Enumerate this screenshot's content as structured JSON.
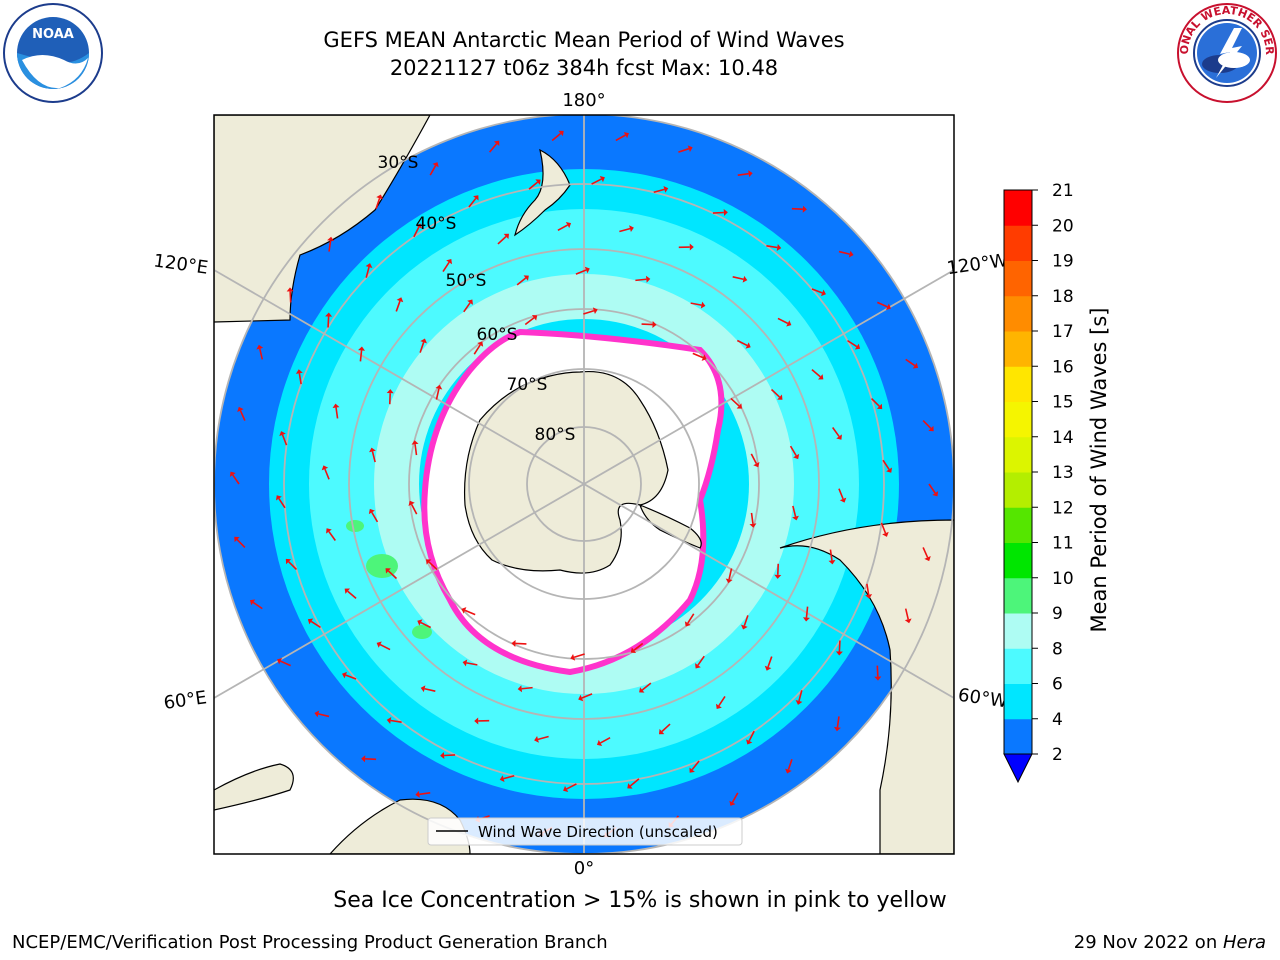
{
  "header": {
    "title_line1": "GEFS MEAN Antarctic Mean Period of Wind Waves",
    "title_line2": "20221127 t06z 384h fcst   Max: 10.48"
  },
  "logos": {
    "left": {
      "icon": "noaa-logo",
      "text": "NOAA"
    },
    "right": {
      "icon": "national-weather-service-logo",
      "text": "NATIONAL WEATHER SERVICE"
    }
  },
  "map": {
    "projection": "south-polar-stereographic",
    "longitude_labels": {
      "top": "180°",
      "bottom": "0°",
      "upper_left": "120°E",
      "upper_right": "120°W",
      "lower_left": "60°E",
      "lower_right": "60°W"
    },
    "latitude_labels": [
      "30°S",
      "40°S",
      "50°S",
      "60°S",
      "70°S",
      "80°S"
    ],
    "legend_label": "Wind Wave Direction (unscaled)",
    "colors": {
      "land": "#eeecd9",
      "band_2_4": "#0a78ff",
      "band_4_6": "#00e6ff",
      "band_6_8": "#4dfaff",
      "band_8_9": "#aefcf3",
      "band_9_10": "#4df57a",
      "ice": "#ffffff",
      "ice_edge": "#ff33cc",
      "arrow": "#ee1111"
    }
  },
  "colorbar": {
    "label": "Mean Period of Wind Waves [s]",
    "ticks": [
      "2",
      "4",
      "6",
      "8",
      "9",
      "10",
      "11",
      "12",
      "13",
      "14",
      "15",
      "16",
      "17",
      "18",
      "19",
      "20",
      "21"
    ],
    "colors": [
      "#0a78ff",
      "#00e6ff",
      "#4dfaff",
      "#aefcf3",
      "#4df57a",
      "#00e600",
      "#55e600",
      "#b4ee00",
      "#dcf500",
      "#f5f500",
      "#ffe600",
      "#ffb400",
      "#ff8c00",
      "#ff6400",
      "#ff3c00",
      "#ff0000"
    ],
    "extend_color": "#0000ff"
  },
  "footer": {
    "note": "Sea Ice Concentration > 15% is shown in pink to yellow",
    "credit_left": "NCEP/EMC/Verification Post Processing Product Generation Branch",
    "credit_right_prefix": "29 Nov 2022 on ",
    "credit_right_host": "Hera"
  }
}
